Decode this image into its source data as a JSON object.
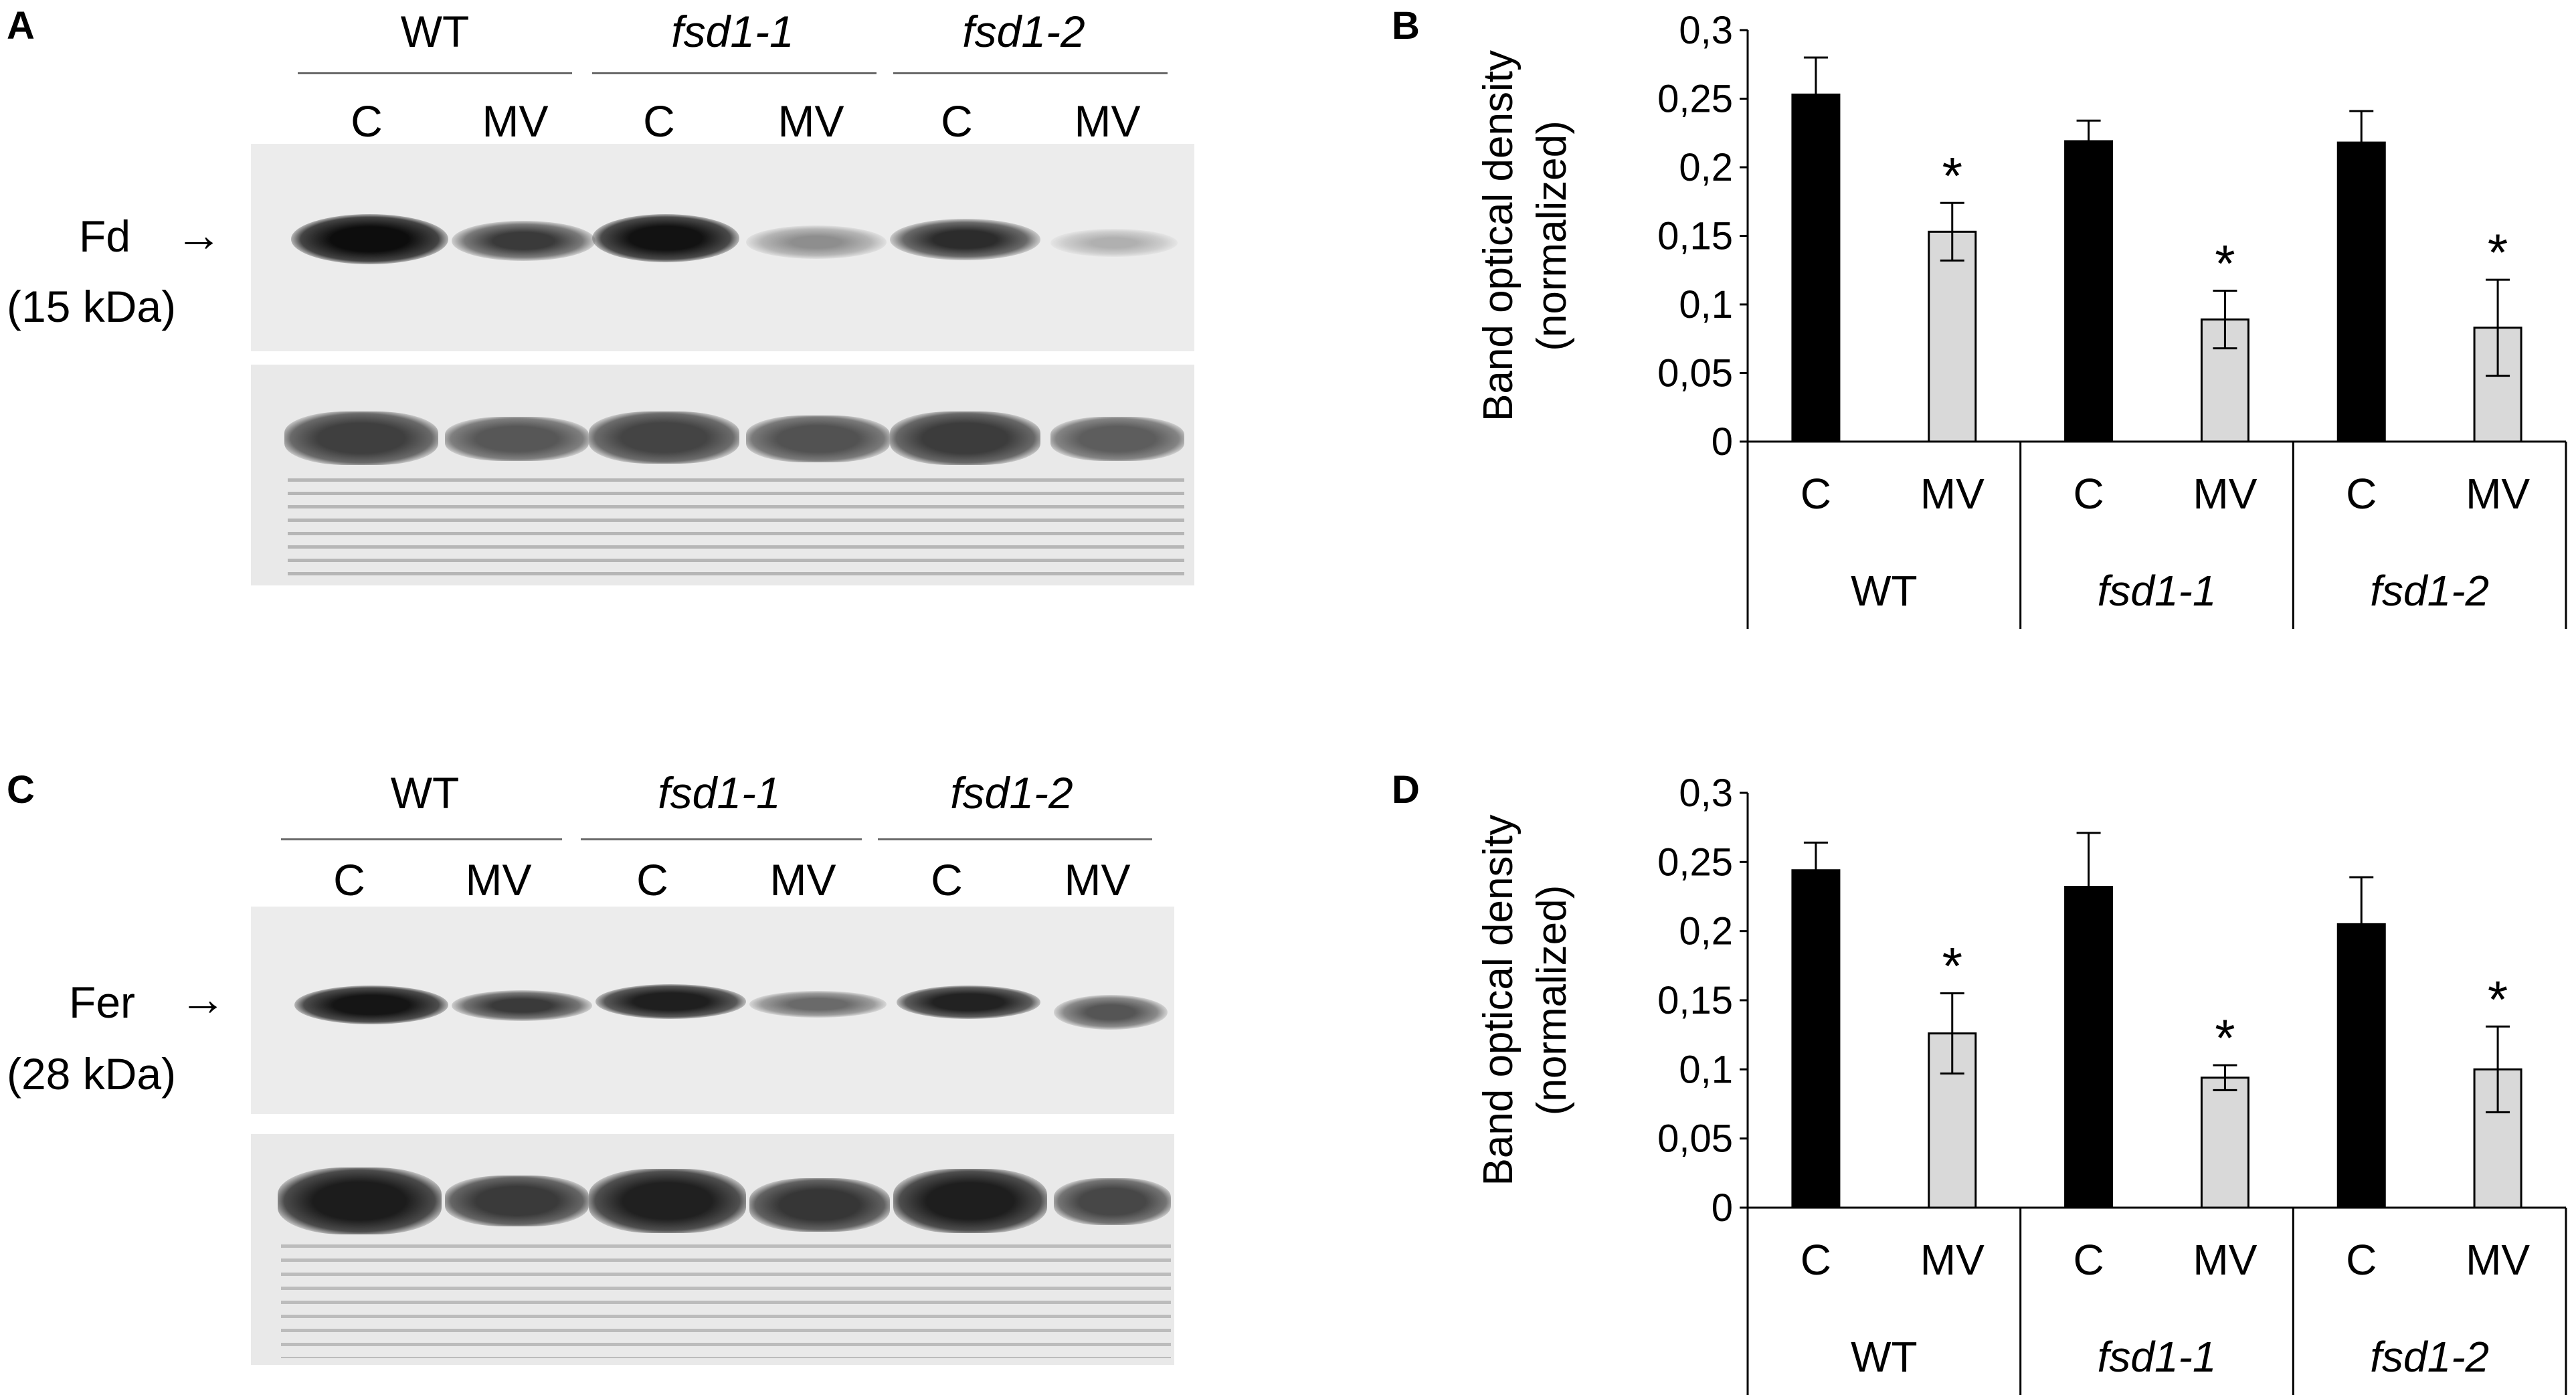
{
  "panels": {
    "A": {
      "letter": "A",
      "groups": [
        "WT",
        "fsd1-1",
        "fsd1-2"
      ],
      "lanes": [
        "C",
        "MV",
        "C",
        "MV",
        "C",
        "MV"
      ],
      "protein_label": "Fd",
      "protein_arrow": "→",
      "protein_size": "(15 kDa)"
    },
    "B": {
      "letter": "B"
    },
    "C": {
      "letter": "C",
      "groups": [
        "WT",
        "fsd1-1",
        "fsd1-2"
      ],
      "lanes": [
        "C",
        "MV",
        "C",
        "MV",
        "C",
        "MV"
      ],
      "protein_label": "Fer",
      "protein_arrow": "→",
      "protein_size": "(28 kDa)"
    },
    "D": {
      "letter": "D"
    }
  },
  "colors": {
    "control": "#000000",
    "mv": "#d9d9d9",
    "axis": "#000000"
  },
  "chart_data": [
    {
      "type": "bar",
      "panel": "B",
      "ylabel_line1": "Band optical density",
      "ylabel_line2": "(normalized)",
      "ylim": [
        0,
        0.3
      ],
      "yticks": [
        "0",
        "0,05",
        "0,1",
        "0,15",
        "0,2",
        "0,25",
        "0,3"
      ],
      "categories": [
        "C",
        "MV",
        "C",
        "MV",
        "C",
        "MV"
      ],
      "groups": [
        "WT",
        "fsd1-1",
        "fsd1-2"
      ],
      "values": [
        0.253,
        0.153,
        0.219,
        0.089,
        0.218,
        0.083
      ],
      "errors": [
        0.027,
        0.021,
        0.015,
        0.021,
        0.023,
        0.035
      ],
      "significance": [
        "",
        "*",
        "",
        "*",
        "",
        "*"
      ],
      "grid": false
    },
    {
      "type": "bar",
      "panel": "D",
      "ylabel_line1": "Band optical density",
      "ylabel_line2": "(normalized)",
      "ylim": [
        0,
        0.3
      ],
      "yticks": [
        "0",
        "0,05",
        "0,1",
        "0,15",
        "0,2",
        "0,25",
        "0,3"
      ],
      "categories": [
        "C",
        "MV",
        "C",
        "MV",
        "C",
        "MV"
      ],
      "groups": [
        "WT",
        "fsd1-1",
        "fsd1-2"
      ],
      "values": [
        0.244,
        0.126,
        0.232,
        0.094,
        0.205,
        0.1
      ],
      "errors": [
        0.02,
        0.029,
        0.039,
        0.009,
        0.034,
        0.031
      ],
      "significance": [
        "",
        "*",
        "",
        "*",
        "",
        "*"
      ],
      "grid": false
    }
  ]
}
